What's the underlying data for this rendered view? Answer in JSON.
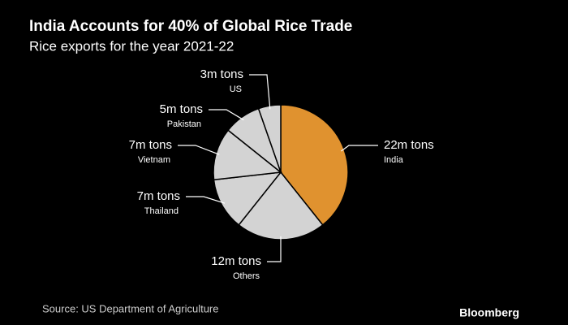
{
  "chart_data": {
    "type": "pie",
    "title": "India Accounts for 40% of Global Rice Trade",
    "subtitle": "Rice exports for the year 2021-22",
    "categories": [
      "India",
      "Others",
      "Thailand",
      "Vietnam",
      "Pakistan",
      "US"
    ],
    "values": [
      22,
      12,
      7,
      7,
      5,
      3
    ],
    "value_labels": [
      "22m tons",
      "12m tons",
      "7m tons",
      "7m tons",
      "5m tons",
      "3m tons"
    ],
    "colors": [
      "#e0922f",
      "#d3d3d3",
      "#d3d3d3",
      "#d3d3d3",
      "#d3d3d3",
      "#d3d3d3"
    ],
    "source": "Source: US Department of Agriculture",
    "brand": "Bloomberg"
  }
}
